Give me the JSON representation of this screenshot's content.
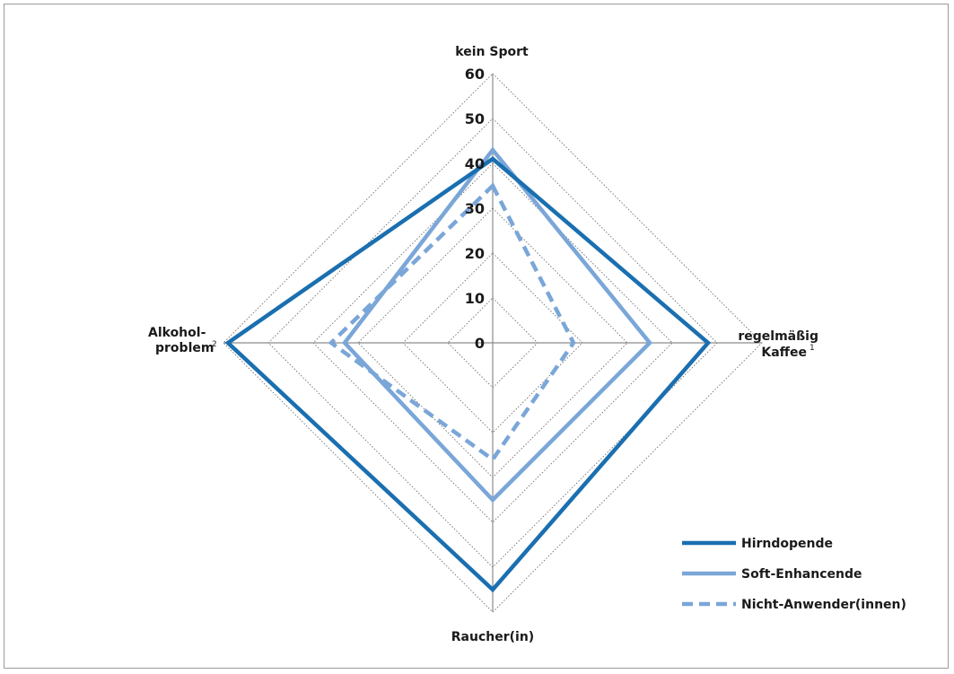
{
  "chart_data": {
    "type": "radar",
    "title": "",
    "axes": [
      {
        "label": "kein Sport",
        "sup": ""
      },
      {
        "label": "regelmäßig Kaffee",
        "line1": "regelmäßig",
        "line2": "Kaffee",
        "sup": "1"
      },
      {
        "label": "Raucher(in)",
        "sup": ""
      },
      {
        "label": "Alkohol-problem",
        "line1": "Alkohol-",
        "line2": "problem",
        "sup": "2"
      }
    ],
    "ticks": [
      "0",
      "10",
      "20",
      "30",
      "40",
      "50",
      "60"
    ],
    "range": [
      0,
      60
    ],
    "grid": true,
    "legend_position": "bottom-right",
    "series": [
      {
        "name": "Hirndopende",
        "values": [
          41,
          48,
          55,
          59
        ],
        "color": "#1a6fb0",
        "style": "solid"
      },
      {
        "name": "Soft-Enhancende",
        "values": [
          43,
          35,
          35,
          33
        ],
        "color": "#7aa6d8",
        "style": "solid"
      },
      {
        "name": "Nicht-Anwender(innen)",
        "values": [
          35,
          18,
          26,
          36
        ],
        "color": "#7aa6d8",
        "style": "dashed"
      }
    ]
  }
}
